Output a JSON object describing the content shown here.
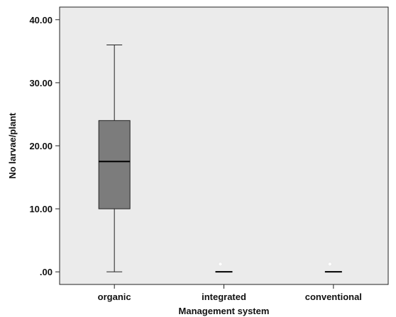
{
  "chart_data": {
    "type": "boxplot",
    "xlabel": "Management system",
    "ylabel": "No larvae/plant",
    "ylim": [
      -2,
      42
    ],
    "yticks": [
      0,
      10,
      20,
      30,
      40
    ],
    "ytick_labels": [
      ".00",
      "10.00",
      "20.00",
      "30.00",
      "40.00"
    ],
    "categories": [
      "organic",
      "integrated",
      "conventional"
    ],
    "boxes": [
      {
        "category": "organic",
        "min": 0,
        "q1": 10,
        "median": 17.5,
        "q3": 24,
        "max": 36,
        "outliers": []
      },
      {
        "category": "integrated",
        "min": 0,
        "q1": 0,
        "median": 0,
        "q3": 0,
        "max": 0,
        "outliers": [
          1
        ]
      },
      {
        "category": "conventional",
        "min": 0,
        "q1": 0,
        "median": 0,
        "q3": 0,
        "max": 0,
        "outliers": [
          1
        ]
      }
    ],
    "grid": false,
    "colors": {
      "plot_bg": "#ebebeb",
      "box_fill": "#7c7c7c",
      "line": "#222222",
      "outlier": "#ffffff"
    }
  }
}
